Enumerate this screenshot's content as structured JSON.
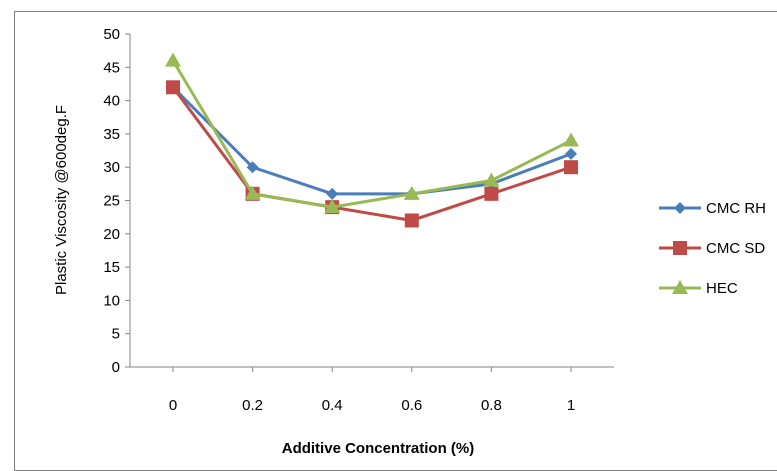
{
  "chart_data": {
    "type": "line",
    "x": [
      0,
      0.2,
      0.4,
      0.6,
      0.8,
      1
    ],
    "x_tick_labels": [
      "0",
      "0.2",
      "0.4",
      "0.6",
      "0.8",
      "1"
    ],
    "y_tick_labels": [
      "0",
      "5",
      "10",
      "15",
      "20",
      "25",
      "30",
      "35",
      "40",
      "45",
      "50"
    ],
    "ylim": [
      0,
      50
    ],
    "xlabel": "Additive Concentration (%)",
    "ylabel": "Plastic Viscosity @600deg.F",
    "grid": false,
    "legend_position": "right",
    "series": [
      {
        "name": "CMC RH",
        "color": "#4a7ebb",
        "marker": "diamond",
        "values": [
          42,
          30,
          26,
          26,
          27.5,
          32
        ]
      },
      {
        "name": "CMC SD",
        "color": "#be4b48",
        "marker": "square",
        "values": [
          42,
          26,
          24,
          22,
          26,
          30
        ]
      },
      {
        "name": "HEC",
        "color": "#98b954",
        "marker": "triangle",
        "values": [
          46,
          26,
          24,
          26,
          28,
          34
        ]
      }
    ]
  }
}
